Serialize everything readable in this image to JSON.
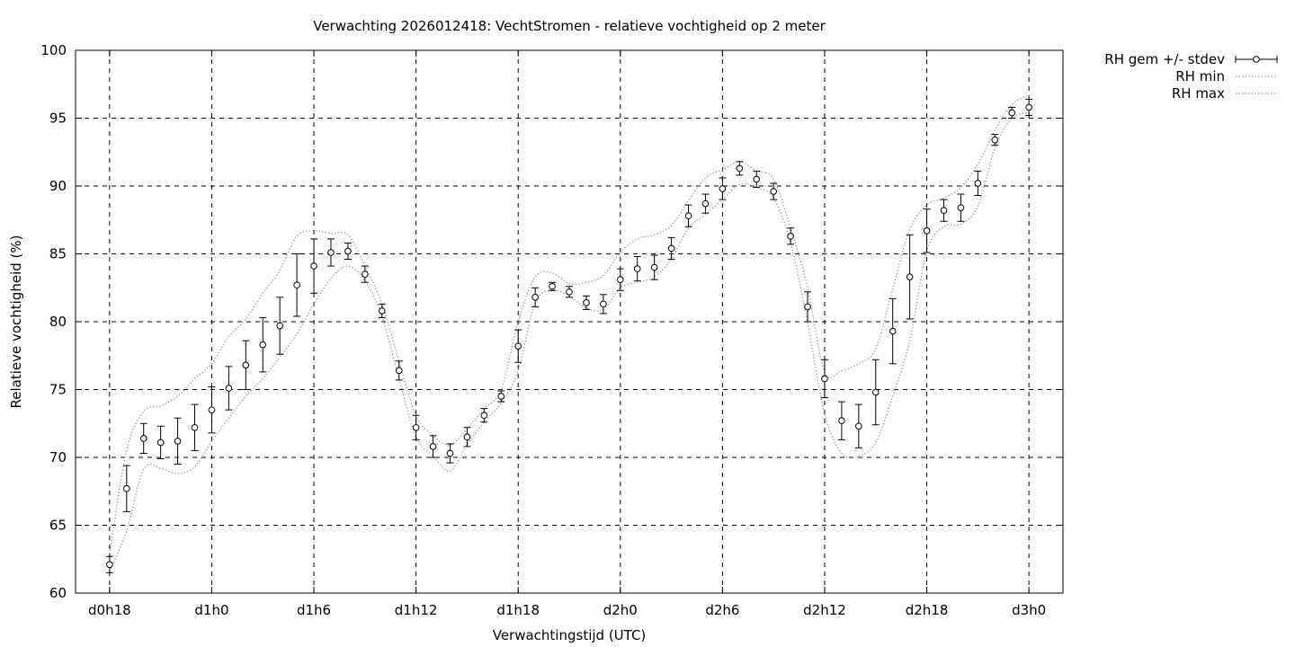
{
  "chart_data": {
    "type": "line",
    "title": "Verwachting 2026012418: VechtStromen - relatieve vochtigheid op 2 meter",
    "xlabel": "Verwachtingstijd (UTC)",
    "ylabel": "Relatieve vochtigheid (%)",
    "xlim": [
      -2,
      56
    ],
    "ylim": [
      60,
      100
    ],
    "x_ticks": [
      {
        "x": 0,
        "label": "d0h18"
      },
      {
        "x": 6,
        "label": "d1h0"
      },
      {
        "x": 12,
        "label": "d1h6"
      },
      {
        "x": 18,
        "label": "d1h12"
      },
      {
        "x": 24,
        "label": "d1h18"
      },
      {
        "x": 30,
        "label": "d2h0"
      },
      {
        "x": 36,
        "label": "d2h6"
      },
      {
        "x": 42,
        "label": "d2h12"
      },
      {
        "x": 48,
        "label": "d2h18"
      },
      {
        "x": 54,
        "label": "d3h0"
      }
    ],
    "y_ticks": [
      60,
      65,
      70,
      75,
      80,
      85,
      90,
      95,
      100
    ],
    "grid": true,
    "legend_position": "outside-top-right",
    "x": [
      0,
      1,
      2,
      3,
      4,
      5,
      6,
      7,
      8,
      9,
      10,
      11,
      12,
      13,
      14,
      15,
      16,
      17,
      18,
      19,
      20,
      21,
      22,
      23,
      24,
      25,
      26,
      27,
      28,
      29,
      30,
      31,
      32,
      33,
      34,
      35,
      36,
      37,
      38,
      39,
      40,
      41,
      42,
      43,
      44,
      45,
      46,
      47,
      48,
      49,
      50,
      51,
      52,
      53,
      54
    ],
    "series": [
      {
        "name": "RH gem +/- stdev",
        "style": "errorbars",
        "values": [
          62.1,
          67.7,
          71.4,
          71.1,
          71.2,
          72.2,
          73.5,
          75.1,
          76.8,
          78.3,
          79.7,
          82.7,
          84.1,
          85.1,
          85.2,
          83.5,
          80.8,
          76.4,
          72.2,
          70.8,
          70.3,
          71.5,
          73.1,
          74.5,
          78.2,
          81.8,
          82.6,
          82.2,
          81.4,
          81.3,
          83.1,
          83.9,
          84.0,
          85.4,
          87.8,
          88.7,
          89.8,
          91.3,
          90.5,
          89.6,
          86.3,
          81.1,
          75.8,
          72.7,
          72.3,
          74.8,
          79.3,
          83.3,
          86.7,
          88.2,
          88.4,
          90.2,
          93.4,
          95.4,
          95.8
        ],
        "stdev": [
          0.6,
          1.7,
          1.1,
          1.2,
          1.7,
          1.7,
          1.7,
          1.6,
          1.8,
          2.0,
          2.1,
          2.3,
          2.0,
          1.0,
          0.6,
          0.6,
          0.5,
          0.7,
          0.9,
          0.8,
          0.7,
          0.7,
          0.5,
          0.4,
          1.2,
          0.7,
          0.3,
          0.4,
          0.5,
          0.7,
          0.8,
          0.9,
          0.9,
          0.8,
          0.8,
          0.7,
          0.8,
          0.5,
          0.6,
          0.6,
          0.6,
          1.1,
          1.4,
          1.4,
          1.6,
          2.4,
          2.4,
          3.1,
          1.6,
          0.8,
          1.0,
          0.9,
          0.4,
          0.4,
          0.6
        ]
      },
      {
        "name": "RH min",
        "style": "dotted",
        "values": [
          61.6,
          64.6,
          69.1,
          69.2,
          68.8,
          69.3,
          71.2,
          72.9,
          74.5,
          75.8,
          77.4,
          79.1,
          81.3,
          83.2,
          84.1,
          83.0,
          80.4,
          75.8,
          71.5,
          70.1,
          69.0,
          70.9,
          72.6,
          74.0,
          76.4,
          81.4,
          82.3,
          81.9,
          81.0,
          80.9,
          82.5,
          82.9,
          83.3,
          84.6,
          86.9,
          87.9,
          89.0,
          90.1,
          89.9,
          89.1,
          85.8,
          79.9,
          73.2,
          70.3,
          70.1,
          71.1,
          74.5,
          78.6,
          85.2,
          87.0,
          87.2,
          88.5,
          92.8,
          95.0,
          95.4
        ]
      },
      {
        "name": "RH max",
        "style": "dotted",
        "values": [
          62.9,
          70.5,
          73.4,
          73.8,
          74.5,
          75.8,
          76.9,
          78.9,
          80.2,
          82.1,
          83.8,
          86.3,
          86.7,
          86.5,
          86.4,
          84.1,
          81.3,
          77.1,
          73.1,
          71.6,
          70.9,
          72.1,
          73.6,
          75.0,
          80.0,
          83.3,
          83.6,
          82.8,
          82.9,
          83.4,
          85.1,
          86.1,
          86.4,
          87.1,
          88.9,
          90.6,
          91.2,
          91.8,
          91.1,
          90.5,
          86.9,
          82.5,
          76.3,
          76.4,
          76.9,
          78.0,
          82.4,
          86.8,
          88.6,
          89.1,
          89.9,
          91.6,
          94.1,
          96.0,
          96.7
        ]
      }
    ]
  }
}
